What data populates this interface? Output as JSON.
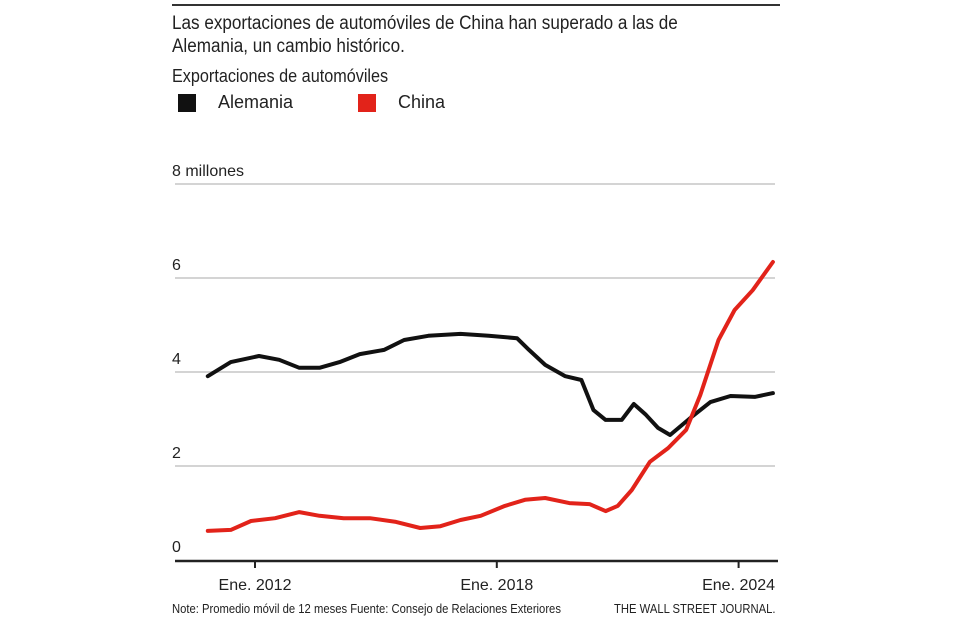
{
  "chart_data": {
    "type": "line",
    "title": "Las exportaciones de automóviles de China han superado a las de Alemania, un cambio histórico.",
    "subtitle": "Exportaciones de automóviles",
    "ylabel": "",
    "xlabel": "",
    "ylim": [
      0,
      8
    ],
    "xlim": [
      2010.5,
      2025.4
    ],
    "yticks": [
      {
        "value": 0,
        "label": "0"
      },
      {
        "value": 2,
        "label": "2"
      },
      {
        "value": 4,
        "label": "4"
      },
      {
        "value": 6,
        "label": "6"
      },
      {
        "value": 8,
        "label": "8 millones"
      }
    ],
    "xticks": [
      {
        "value": 2012,
        "label": "Ene. 2012"
      },
      {
        "value": 2018,
        "label": "Ene. 2018"
      },
      {
        "value": 2024,
        "label": "Ene. 2024"
      }
    ],
    "grid": true,
    "legend_position": "top-left",
    "series": [
      {
        "name": "Alemania",
        "color": "#111111",
        "x": [
          2010.83,
          2011.4,
          2012.1,
          2012.6,
          2013.1,
          2013.6,
          2014.1,
          2014.6,
          2015.2,
          2015.7,
          2016.3,
          2017.1,
          2017.8,
          2018.5,
          2018.8,
          2019.2,
          2019.7,
          2020.1,
          2020.4,
          2020.7,
          2021.1,
          2021.4,
          2021.7,
          2022.0,
          2022.3,
          2022.8,
          2023.3,
          2023.8,
          2024.4,
          2024.85
        ],
        "y": [
          3.91,
          4.21,
          4.34,
          4.26,
          4.09,
          4.09,
          4.21,
          4.38,
          4.47,
          4.68,
          4.77,
          4.81,
          4.77,
          4.72,
          4.47,
          4.15,
          3.91,
          3.83,
          3.19,
          2.98,
          2.98,
          3.32,
          3.09,
          2.81,
          2.66,
          3.02,
          3.36,
          3.49,
          3.47,
          3.55
        ]
      },
      {
        "name": "China",
        "color": "#e2231a",
        "x": [
          2010.83,
          2011.4,
          2011.9,
          2012.5,
          2013.1,
          2013.6,
          2014.2,
          2014.85,
          2015.5,
          2016.1,
          2016.6,
          2017.1,
          2017.6,
          2018.2,
          2018.7,
          2019.2,
          2019.8,
          2020.3,
          2020.7,
          2021.0,
          2021.35,
          2021.8,
          2022.25,
          2022.7,
          2023.05,
          2023.5,
          2023.9,
          2024.35,
          2024.85
        ],
        "y": [
          0.62,
          0.64,
          0.83,
          0.89,
          1.02,
          0.94,
          0.89,
          0.89,
          0.81,
          0.68,
          0.72,
          0.85,
          0.94,
          1.15,
          1.28,
          1.32,
          1.21,
          1.19,
          1.04,
          1.15,
          1.49,
          2.09,
          2.38,
          2.77,
          3.51,
          4.68,
          5.32,
          5.74,
          6.34
        ]
      }
    ]
  },
  "footer": {
    "note": "Note: Promedio móvil de 12 meses Fuente: Consejo de Relaciones Exteriores",
    "source": "THE WALL STREET JOURNAL."
  }
}
